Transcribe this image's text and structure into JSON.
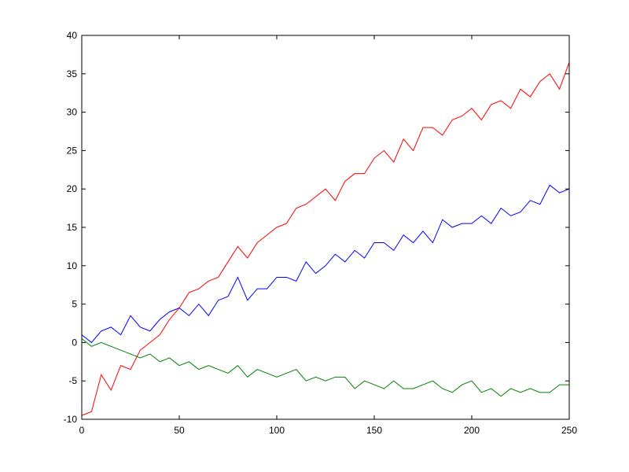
{
  "chart_data": {
    "type": "line",
    "x": [
      0,
      5,
      10,
      15,
      20,
      25,
      30,
      35,
      40,
      45,
      50,
      55,
      60,
      65,
      70,
      75,
      80,
      85,
      90,
      95,
      100,
      105,
      110,
      115,
      120,
      125,
      130,
      135,
      140,
      145,
      150,
      155,
      160,
      165,
      170,
      175,
      180,
      185,
      190,
      195,
      200,
      205,
      210,
      215,
      220,
      225,
      230,
      235,
      240,
      245,
      250
    ],
    "series": [
      {
        "color": "#ff0000",
        "values": [
          -9.5,
          -9,
          -4.2,
          -6.2,
          -3,
          -3.5,
          -1,
          0,
          1,
          3,
          4.5,
          6.5,
          7,
          8,
          8.5,
          10.5,
          12.5,
          11,
          13,
          14,
          15,
          15.5,
          17.5,
          18,
          19,
          20,
          18.5,
          21,
          22,
          22,
          24,
          25,
          23.5,
          26.5,
          25,
          28,
          28,
          27,
          29,
          29.5,
          30.5,
          29,
          31,
          31.5,
          30.5,
          33,
          32,
          34,
          35,
          33,
          36.5
        ]
      },
      {
        "color": "#0000ff",
        "values": [
          1,
          0,
          1.5,
          2,
          1,
          3.5,
          2,
          1.5,
          3,
          4,
          4.5,
          3.5,
          5,
          3.5,
          5.5,
          6,
          8.5,
          5.5,
          7,
          7,
          8.5,
          8.5,
          8,
          10.5,
          9,
          10,
          11.5,
          10.5,
          12,
          11,
          13,
          13,
          12,
          14,
          13,
          14.5,
          13,
          16,
          15,
          15.5,
          15.5,
          16.5,
          15.5,
          17.5,
          16.5,
          17,
          18.5,
          18,
          20.5,
          19.5,
          20
        ]
      },
      {
        "color": "#008000",
        "values": [
          0.5,
          -0.5,
          0,
          -0.5,
          -1,
          -1.5,
          -2,
          -1.5,
          -2.5,
          -2,
          -3,
          -2.5,
          -3.5,
          -3,
          -3.5,
          -4,
          -3,
          -4.5,
          -3.5,
          -4,
          -4.5,
          -4,
          -3.5,
          -5,
          -4.5,
          -5,
          -4.5,
          -4.5,
          -6,
          -5,
          -5.5,
          -6,
          -5,
          -6,
          -6,
          -5.5,
          -5,
          -6,
          -6.5,
          -5.5,
          -5,
          -6.5,
          -6,
          -7,
          -6,
          -6.5,
          -6,
          -6.5,
          -6.5,
          -5.5,
          -5.5
        ]
      }
    ],
    "xlim": [
      0,
      250
    ],
    "xticks": [
      0,
      50,
      100,
      150,
      200,
      250
    ],
    "ylim": [
      -10,
      40
    ],
    "yticks": [
      -10,
      -5,
      0,
      5,
      10,
      15,
      20,
      25,
      30,
      35,
      40
    ]
  }
}
